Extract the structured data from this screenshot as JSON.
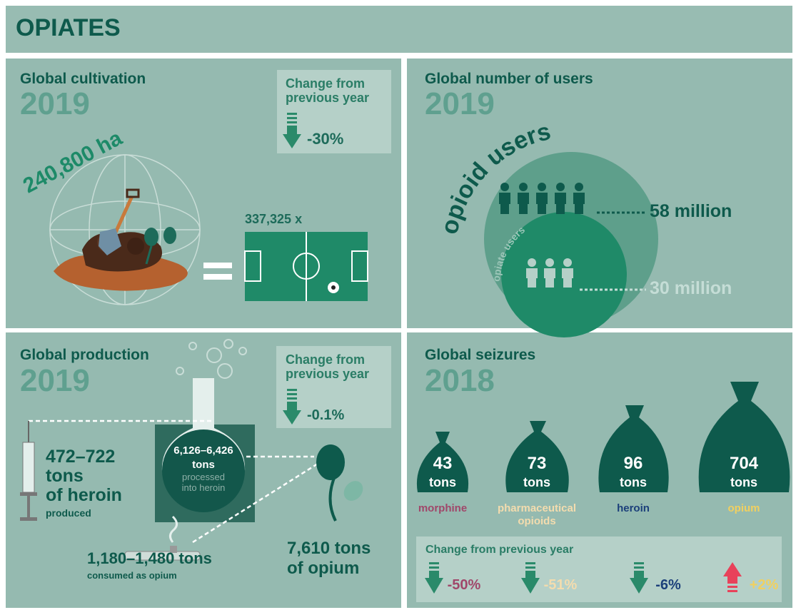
{
  "header": {
    "title": "OPIATES"
  },
  "cultivation": {
    "title": "Global cultivation",
    "year": "2019",
    "change_label": [
      "Change from",
      "previous year"
    ],
    "change": "-30%",
    "area": "240,800 ha",
    "fields": "337,325 x"
  },
  "users": {
    "title": "Global number of users",
    "year": "2019",
    "outer_label": "opioid users",
    "inner_label": "opiate users",
    "opioid_count": "58 million",
    "opiate_count": "30 million"
  },
  "production": {
    "title": "Global production",
    "year": "2019",
    "change_label": [
      "Change from",
      "previous year"
    ],
    "change": "-0.1%",
    "heroin": [
      "472–722",
      "tons",
      "of heroin"
    ],
    "heroin_note": "produced",
    "processed": [
      "6,126–6,426",
      "tons"
    ],
    "processed_note": [
      "processed",
      "into heroin"
    ],
    "opium": [
      "7,610 tons",
      "of opium"
    ],
    "consumed": "1,180–1,480 tons",
    "consumed_note": "consumed as opium"
  },
  "seizures": {
    "title": "Global seizures",
    "year": "2018",
    "items": [
      {
        "amount": "43",
        "unit": "tons",
        "label": [
          "morphine"
        ]
      },
      {
        "amount": "73",
        "unit": "tons",
        "label": [
          "pharmaceutical",
          "opioids"
        ]
      },
      {
        "amount": "96",
        "unit": "tons",
        "label": [
          "heroin"
        ]
      },
      {
        "amount": "704",
        "unit": "tons",
        "label": [
          "opium"
        ]
      }
    ],
    "change_label": "Change from previous year",
    "changes": [
      "-50%",
      "-51%",
      "-6%",
      "+2%"
    ]
  }
}
